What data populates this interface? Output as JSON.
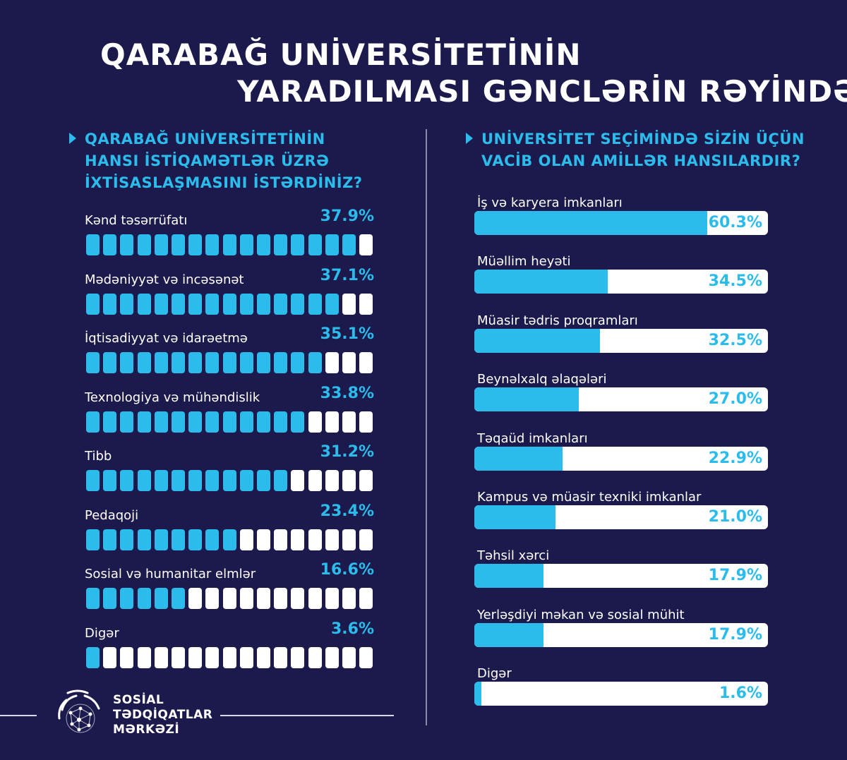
{
  "title": {
    "line1": "QARABAĞ UNİVERSİTETİNİN",
    "line2": "YARADILMASI GƏNCLƏRİN RƏYİNDƏ"
  },
  "logo": {
    "line1": "SOSİAL",
    "line2": "TƏDQİQATLAR",
    "line3": "MƏRKƏZİ"
  },
  "colors": {
    "background": "#1c1a4d",
    "accent": "#2bbcec",
    "empty": "#ffffff"
  },
  "chart_data": [
    {
      "type": "bar",
      "title_lines": [
        "QARABAĞ UNİVERSİTETİNİN",
        "HANSI İSTİQAMƏTLƏR ÜZRƏ",
        "İXTİSASLAŞMASINI  İSTƏRDİNİZ?"
      ],
      "unit": "%",
      "categories": [
        "Kənd təsərrüfatı",
        "Mədəniyyət və incəsənət",
        "İqtisadiyyat və idarəetmə",
        "Texnologiya və mühəndislik",
        "Tibb",
        "Pedaqoji",
        "Sosial və humanitar elmlər",
        "Digər"
      ],
      "values": [
        37.9,
        37.1,
        35.1,
        33.8,
        31.2,
        23.4,
        16.6,
        3.6
      ],
      "labels": [
        "37.9%",
        "37.1%",
        "35.1%",
        "33.8%",
        "31.2%",
        "23.4%",
        "16.6%",
        "3.6%"
      ],
      "segments_total": 17,
      "segments_filled": [
        16,
        15,
        14,
        13,
        12,
        9,
        6,
        1
      ]
    },
    {
      "type": "bar",
      "title_lines": [
        "UNİVERSİTET SEÇİMİNDƏ SİZİN ÜÇÜN",
        "VACİB OLAN AMİLLƏR HANSILARDIR?"
      ],
      "unit": "%",
      "categories": [
        "İş və karyera imkanları",
        "Müəllim heyəti",
        "Müasir tədris proqramları",
        "Beynəlxalq əlaqələri",
        "Təqaüd imkanları",
        "Kampus və müasir texniki imkanlar",
        "Təhsil xərci",
        "Yerləşdiyi məkan və sosial mühit",
        "Digər"
      ],
      "values": [
        60.3,
        34.5,
        32.5,
        27.0,
        22.9,
        21.0,
        17.9,
        17.9,
        1.6
      ],
      "labels": [
        "60.3%",
        "34.5%",
        "32.5%",
        "27.0%",
        "22.9%",
        "21.0%",
        "17.9%",
        "17.9%",
        "1.6%"
      ],
      "xlim": [
        0,
        76
      ]
    }
  ]
}
